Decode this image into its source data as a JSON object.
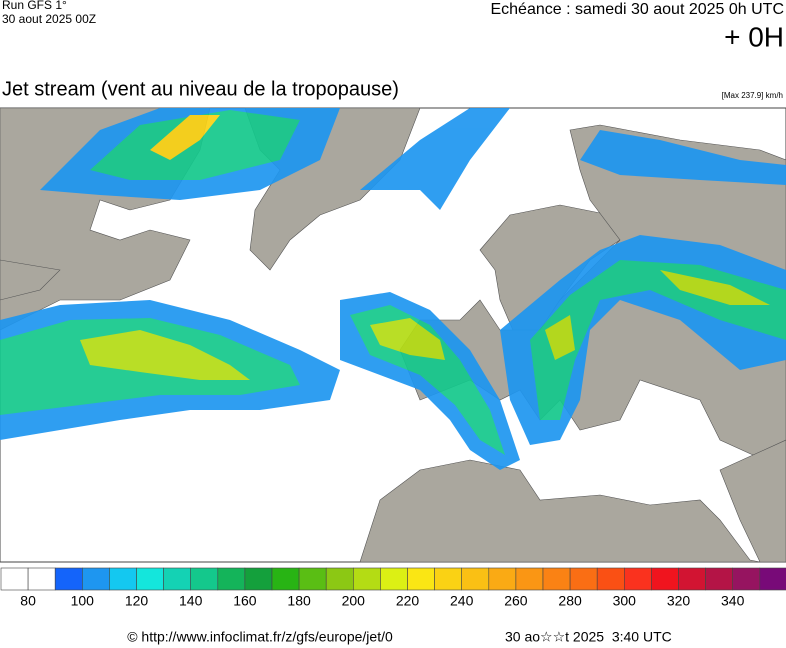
{
  "header": {
    "run": "Run GFS 1°",
    "date": "30 aout 2025 00Z",
    "echeance": "Echéance : samedi 30 aout 2025 0h UTC",
    "offset": "+ 0H"
  },
  "title": "Jet stream (vent au niveau de la tropopause)",
  "max_label": "[Max 237.9] km/h",
  "legend": {
    "start": 70,
    "step": 10,
    "colors": [
      "#ffffff",
      "#ffffff",
      "#1464fa",
      "#1e96f0",
      "#14c8f0",
      "#14e6dc",
      "#14d2b4",
      "#14c88c",
      "#14b45a",
      "#14a03c",
      "#28b414",
      "#5abe14",
      "#8cc814",
      "#b4dc14",
      "#dcf014",
      "#fae614",
      "#fad214",
      "#fac014",
      "#faaa14",
      "#fa9614",
      "#fa8214",
      "#fa6e14",
      "#fa5014",
      "#fa321e",
      "#f0141e",
      "#d21432",
      "#b41446",
      "#961460",
      "#780a78"
    ],
    "labels": [
      80,
      100,
      120,
      140,
      160,
      180,
      200,
      220,
      240,
      260,
      280,
      300,
      320,
      340
    ]
  },
  "footer": {
    "url": "© http://www.infoclimat.fr/z/gfs/europe/jet/0",
    "timestamp": "30 ao☆☆t 2025  3:40 UTC"
  }
}
